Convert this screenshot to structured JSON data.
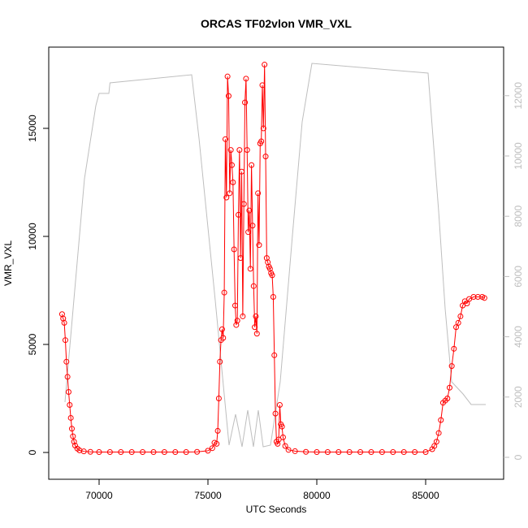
{
  "chart_data": {
    "type": "line",
    "title": "ORCAS TF02vlon VMR_VXL",
    "x_label": "UTC Seconds",
    "y_label": "VMR_VXL",
    "xlim": [
      67687,
      88582
    ],
    "xticks": [
      70000,
      75000,
      80000,
      85000
    ],
    "ylim": [
      -1240,
      18760
    ],
    "yticks": [
      0,
      5000,
      10000,
      15000
    ],
    "y2lim": [
      -728,
      13612
    ],
    "y2ticks": [
      0,
      2000,
      4000,
      6000,
      8000,
      10000,
      12000
    ],
    "y2_color": "#bebebe",
    "grid": false,
    "series": [
      {
        "color": "#bebebe",
        "axis": "y2",
        "markers": false,
        "x": [
          68433,
          69328,
          69851,
          70000,
          70448,
          70500,
          74253,
          74589,
          75336,
          75970,
          76268,
          76567,
          76828,
          77089,
          77313,
          77537,
          77873,
          78320,
          78880,
          79328,
          79776,
          85112,
          85597,
          85896,
          86194,
          86717,
          87090,
          87762
        ],
        "values": [
          1833,
          9245,
          11671,
          12075,
          12075,
          12426,
          12695,
          10593,
          5202,
          404,
          1429,
          350,
          1563,
          350,
          1563,
          350,
          404,
          2507,
          7358,
          11132,
          13073,
          12749,
          8167,
          4933,
          2507,
          2102,
          1752,
          1752
        ]
      },
      {
        "color": "#ff0000",
        "axis": "y",
        "markers": true,
        "x": [
          68300,
          68350,
          68400,
          68450,
          68500,
          68550,
          68600,
          68650,
          68700,
          68750,
          68800,
          68850,
          68900,
          69000,
          69100,
          69300,
          69600,
          70000,
          70500,
          71000,
          71500,
          72000,
          72500,
          73000,
          73500,
          74000,
          74500,
          75000,
          75200,
          75300,
          75400,
          75450,
          75500,
          75550,
          75600,
          75650,
          75700,
          75750,
          75800,
          75850,
          75900,
          75950,
          76000,
          76050,
          76100,
          76150,
          76200,
          76250,
          76300,
          76350,
          76400,
          76450,
          76500,
          76550,
          76600,
          76650,
          76700,
          76750,
          76800,
          76850,
          76900,
          76950,
          77000,
          77050,
          77100,
          77150,
          77200,
          77250,
          77300,
          77350,
          77400,
          77450,
          77500,
          77550,
          77600,
          77650,
          77700,
          77750,
          77800,
          77850,
          77900,
          77950,
          78000,
          78050,
          78100,
          78150,
          78200,
          78250,
          78300,
          78350,
          78400,
          78450,
          78550,
          78700,
          79000,
          79500,
          80000,
          80500,
          81000,
          81500,
          82000,
          82500,
          83000,
          83500,
          84000,
          84500,
          85000,
          85300,
          85400,
          85500,
          85600,
          85700,
          85800,
          85900,
          86000,
          86100,
          86200,
          86300,
          86400,
          86500,
          86600,
          86700,
          86800,
          86900,
          87000,
          87200,
          87400,
          87600,
          87700
        ],
        "values": [
          6400,
          6200,
          6000,
          5200,
          4200,
          3500,
          2800,
          2200,
          1600,
          1100,
          750,
          500,
          320,
          180,
          100,
          50,
          30,
          20,
          20,
          20,
          20,
          20,
          20,
          20,
          20,
          20,
          30,
          80,
          200,
          450,
          400,
          1000,
          2500,
          4200,
          5200,
          5700,
          5300,
          7400,
          14500,
          11800,
          17400,
          16500,
          12000,
          14000,
          13300,
          12500,
          9400,
          6800,
          5900,
          6100,
          11000,
          14000,
          9000,
          13000,
          6300,
          11500,
          16200,
          17300,
          14000,
          10200,
          11200,
          8500,
          13300,
          10500,
          7700,
          5800,
          6300,
          5500,
          12000,
          9600,
          14300,
          14400,
          17000,
          15000,
          17950,
          13700,
          9000,
          8800,
          8600,
          8500,
          8300,
          8200,
          7200,
          4500,
          1800,
          500,
          400,
          600,
          2200,
          1300,
          1200,
          700,
          300,
          120,
          60,
          30,
          20,
          20,
          20,
          20,
          20,
          20,
          20,
          20,
          20,
          20,
          20,
          150,
          300,
          500,
          900,
          1500,
          2300,
          2400,
          2500,
          3000,
          4000,
          4800,
          5800,
          6000,
          6300,
          6800,
          7000,
          6900,
          7100,
          7200,
          7200,
          7200,
          7150
        ]
      }
    ]
  }
}
